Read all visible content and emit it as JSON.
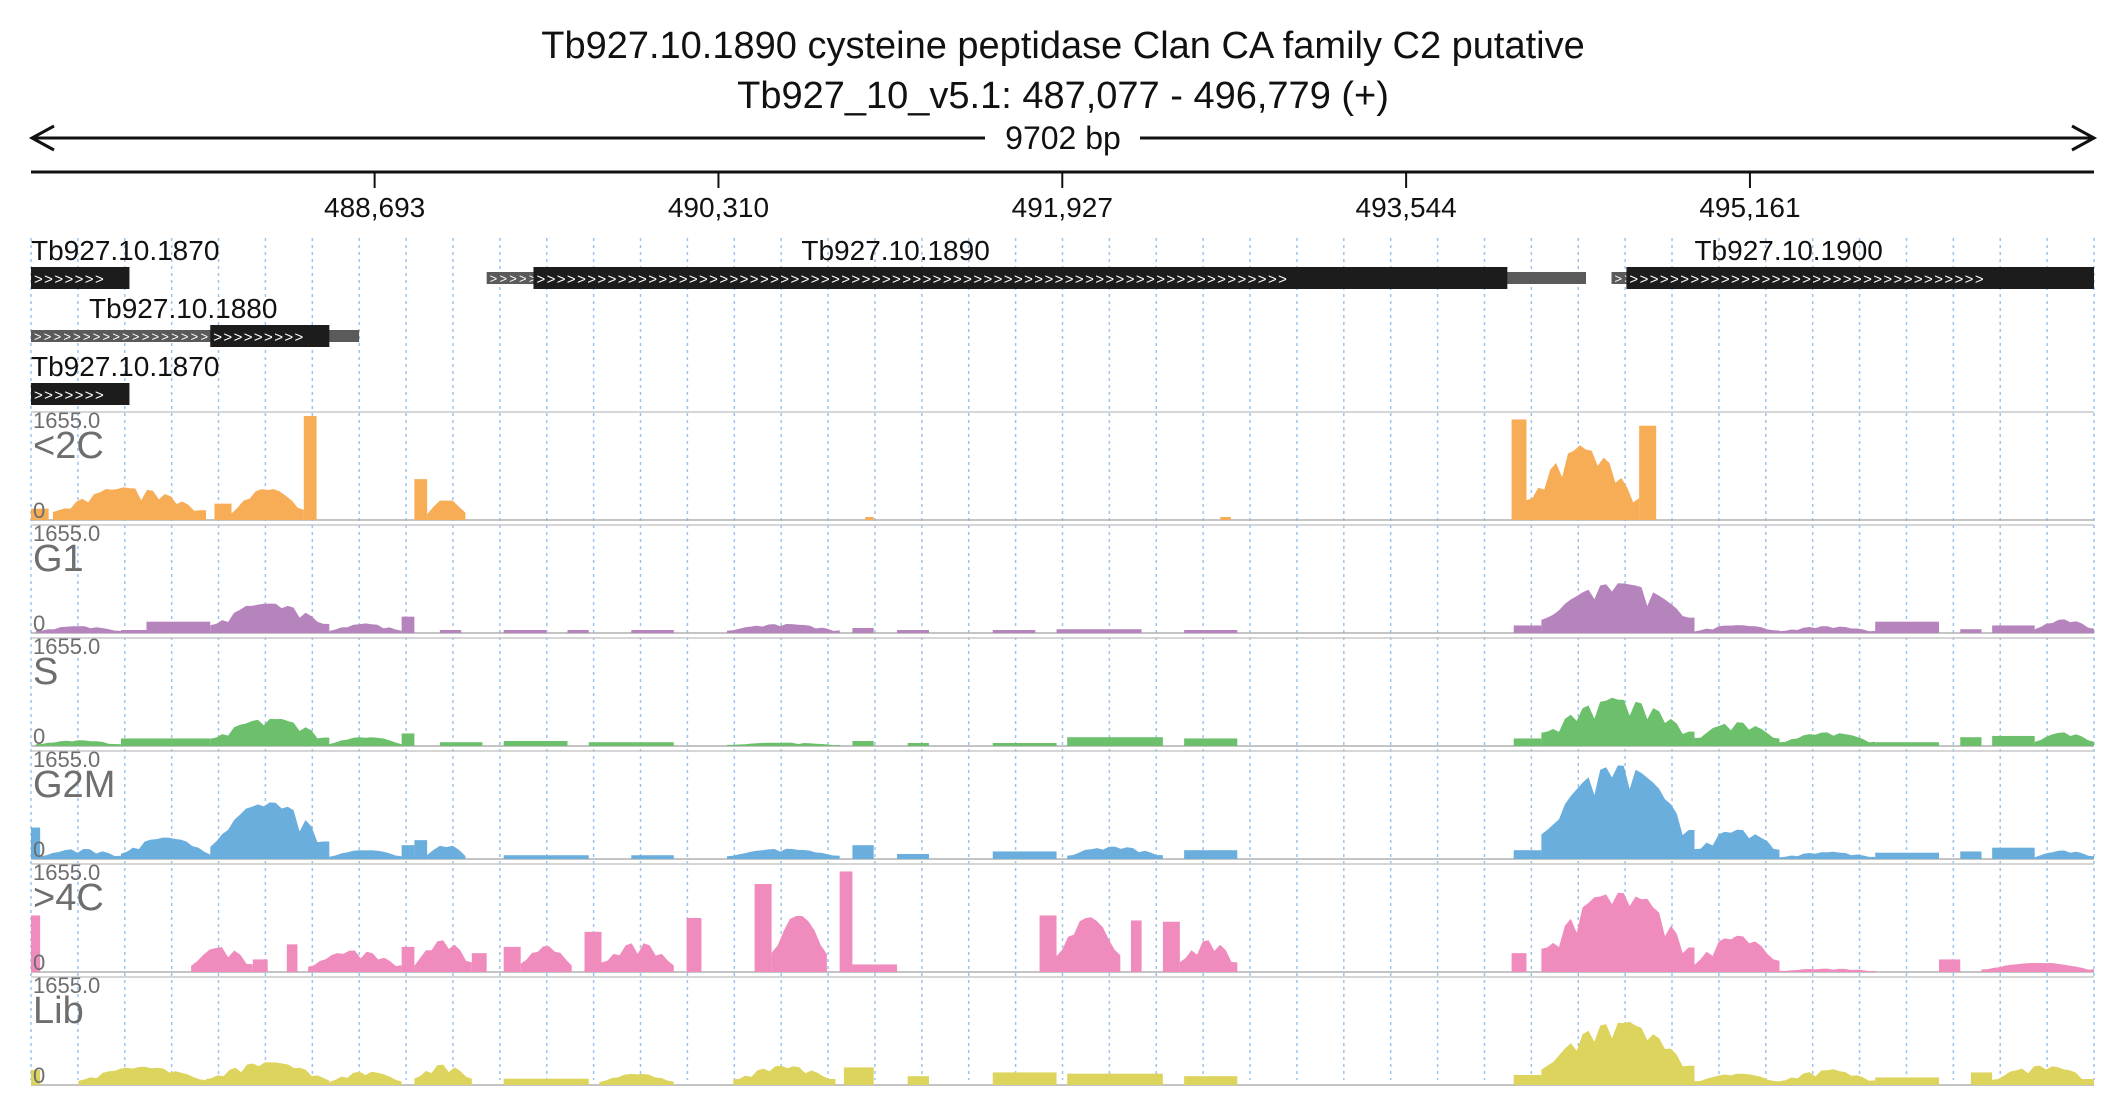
{
  "header": {
    "title": "Tb927.10.1890  cysteine peptidase  Clan CA  family C2  putative",
    "locus": "Tb927_10_v5.1: 487,077 - 496,779 (+)",
    "span_label": "9702 bp"
  },
  "chart_data": {
    "type": "area",
    "region": {
      "start": 487077,
      "end": 496779
    },
    "ruler_ticks": [
      {
        "pos": 488693,
        "label": "488,693"
      },
      {
        "pos": 490310,
        "label": "490,310"
      },
      {
        "pos": 491927,
        "label": "491,927"
      },
      {
        "pos": 493544,
        "label": "493,544"
      },
      {
        "pos": 495161,
        "label": "495,161"
      }
    ],
    "genes": [
      {
        "name": "Tb927.10.1870",
        "row": 0,
        "show_label": true,
        "label_pos": 487077,
        "utr": [],
        "cds": [
          487077,
          487540
        ],
        "strand": "+"
      },
      {
        "name": "Tb927.10.1890",
        "row": 0,
        "show_label": true,
        "label_pos": 490700,
        "utr": [
          489220,
          494390
        ],
        "cds": [
          489440,
          494020
        ],
        "strand": "+"
      },
      {
        "name": "Tb927.10.1900",
        "row": 0,
        "show_label": true,
        "label_pos": 494900,
        "utr": [
          494510,
          496779
        ],
        "cds": [
          494580,
          496779
        ],
        "strand": "+"
      },
      {
        "name": "Tb927.10.1880",
        "row": 1,
        "show_label": true,
        "label_pos": 487350,
        "utr": [
          487077,
          488620
        ],
        "cds": [
          487920,
          488480
        ],
        "strand": "+"
      },
      {
        "name": "Tb927.10.1870",
        "row": 2,
        "show_label": true,
        "label_pos": 487077,
        "utr": [],
        "cds": [
          487077,
          487540
        ],
        "strand": "+"
      }
    ],
    "tracks": [
      {
        "name": "<2C",
        "color": "#f7ac56",
        "max_label": "1655.0",
        "min_label": "0",
        "max": 1655,
        "regions": [
          {
            "s": 487077,
            "e": 487160,
            "v": 180
          },
          {
            "s": 487180,
            "e": 487900,
            "v": 560,
            "shape": "hump"
          },
          {
            "s": 487940,
            "e": 488020,
            "v": 260
          },
          {
            "s": 488020,
            "e": 488360,
            "v": 560,
            "shape": "hump"
          },
          {
            "s": 488360,
            "e": 488420,
            "v": 1655
          },
          {
            "s": 488880,
            "e": 488940,
            "v": 650
          },
          {
            "s": 488940,
            "e": 489120,
            "v": 380,
            "shape": "hump"
          },
          {
            "s": 491000,
            "e": 491040,
            "v": 30
          },
          {
            "s": 492670,
            "e": 492720,
            "v": 40
          },
          {
            "s": 494040,
            "e": 494110,
            "v": 1600
          },
          {
            "s": 494110,
            "e": 494640,
            "v": 1250,
            "shape": "hump"
          },
          {
            "s": 494640,
            "e": 494720,
            "v": 1500
          }
        ]
      },
      {
        "name": "G1",
        "color": "#b584bd",
        "max_label": "1655.0",
        "min_label": "0",
        "max": 1655,
        "regions": [
          {
            "s": 487100,
            "e": 487500,
            "v": 120,
            "shape": "hump"
          },
          {
            "s": 487500,
            "e": 487620,
            "v": 40
          },
          {
            "s": 487620,
            "e": 487920,
            "v": 180
          },
          {
            "s": 487920,
            "e": 488480,
            "v": 520,
            "shape": "hump"
          },
          {
            "s": 488480,
            "e": 488820,
            "v": 160,
            "shape": "hump"
          },
          {
            "s": 488820,
            "e": 488880,
            "v": 260
          },
          {
            "s": 489000,
            "e": 489100,
            "v": 40
          },
          {
            "s": 489300,
            "e": 489500,
            "v": 40
          },
          {
            "s": 489600,
            "e": 489700,
            "v": 40
          },
          {
            "s": 489900,
            "e": 490100,
            "v": 40
          },
          {
            "s": 490350,
            "e": 490880,
            "v": 160,
            "shape": "hump"
          },
          {
            "s": 490940,
            "e": 491040,
            "v": 80
          },
          {
            "s": 491150,
            "e": 491300,
            "v": 40
          },
          {
            "s": 491600,
            "e": 491800,
            "v": 40
          },
          {
            "s": 491900,
            "e": 492300,
            "v": 60
          },
          {
            "s": 492500,
            "e": 492750,
            "v": 40
          },
          {
            "s": 494050,
            "e": 494180,
            "v": 120
          },
          {
            "s": 494180,
            "e": 494900,
            "v": 880,
            "shape": "hump"
          },
          {
            "s": 494900,
            "e": 495300,
            "v": 140,
            "shape": "hump"
          },
          {
            "s": 495300,
            "e": 495750,
            "v": 120,
            "shape": "hump"
          },
          {
            "s": 495750,
            "e": 496050,
            "v": 180
          },
          {
            "s": 496150,
            "e": 496250,
            "v": 60
          },
          {
            "s": 496300,
            "e": 496500,
            "v": 120
          },
          {
            "s": 496500,
            "e": 496779,
            "v": 240,
            "shape": "hump"
          }
        ]
      },
      {
        "name": "S",
        "color": "#6cc06c",
        "max_label": "1655.0",
        "min_label": "0",
        "max": 1655,
        "regions": [
          {
            "s": 487100,
            "e": 487500,
            "v": 100,
            "shape": "hump"
          },
          {
            "s": 487500,
            "e": 487920,
            "v": 120
          },
          {
            "s": 487920,
            "e": 488480,
            "v": 480,
            "shape": "hump"
          },
          {
            "s": 488480,
            "e": 488820,
            "v": 160,
            "shape": "hump"
          },
          {
            "s": 488820,
            "e": 488880,
            "v": 200
          },
          {
            "s": 489000,
            "e": 489200,
            "v": 60
          },
          {
            "s": 489300,
            "e": 489600,
            "v": 80
          },
          {
            "s": 489700,
            "e": 490100,
            "v": 60
          },
          {
            "s": 490350,
            "e": 490880,
            "v": 60,
            "shape": "hump"
          },
          {
            "s": 490940,
            "e": 491040,
            "v": 80
          },
          {
            "s": 491200,
            "e": 491300,
            "v": 40
          },
          {
            "s": 491600,
            "e": 491900,
            "v": 40
          },
          {
            "s": 491950,
            "e": 492400,
            "v": 140
          },
          {
            "s": 492500,
            "e": 492750,
            "v": 120
          },
          {
            "s": 494050,
            "e": 494180,
            "v": 120
          },
          {
            "s": 494180,
            "e": 494900,
            "v": 820,
            "shape": "hump"
          },
          {
            "s": 494900,
            "e": 495300,
            "v": 420,
            "shape": "hump"
          },
          {
            "s": 495300,
            "e": 495750,
            "v": 240,
            "shape": "hump"
          },
          {
            "s": 495750,
            "e": 496050,
            "v": 60
          },
          {
            "s": 496150,
            "e": 496250,
            "v": 140
          },
          {
            "s": 496300,
            "e": 496500,
            "v": 160
          },
          {
            "s": 496500,
            "e": 496779,
            "v": 240,
            "shape": "hump"
          }
        ]
      },
      {
        "name": "G2M",
        "color": "#6aaede",
        "max_label": "1655.0",
        "min_label": "0",
        "max": 1655,
        "regions": [
          {
            "s": 487077,
            "e": 487120,
            "v": 500
          },
          {
            "s": 487120,
            "e": 487500,
            "v": 180,
            "shape": "hump"
          },
          {
            "s": 487500,
            "e": 487920,
            "v": 380,
            "shape": "hump"
          },
          {
            "s": 487920,
            "e": 488480,
            "v": 1000,
            "shape": "hump"
          },
          {
            "s": 488480,
            "e": 488820,
            "v": 160,
            "shape": "hump"
          },
          {
            "s": 488820,
            "e": 488880,
            "v": 220
          },
          {
            "s": 488880,
            "e": 488940,
            "v": 300
          },
          {
            "s": 488940,
            "e": 489120,
            "v": 260,
            "shape": "hump"
          },
          {
            "s": 489300,
            "e": 489700,
            "v": 60
          },
          {
            "s": 489900,
            "e": 490100,
            "v": 60
          },
          {
            "s": 490350,
            "e": 490880,
            "v": 180,
            "shape": "hump"
          },
          {
            "s": 490940,
            "e": 491040,
            "v": 220
          },
          {
            "s": 491150,
            "e": 491300,
            "v": 80
          },
          {
            "s": 491600,
            "e": 491900,
            "v": 120
          },
          {
            "s": 491950,
            "e": 492400,
            "v": 220,
            "shape": "hump"
          },
          {
            "s": 492500,
            "e": 492750,
            "v": 140
          },
          {
            "s": 494050,
            "e": 494180,
            "v": 140
          },
          {
            "s": 494180,
            "e": 494900,
            "v": 1655,
            "shape": "hump"
          },
          {
            "s": 494900,
            "e": 495300,
            "v": 520,
            "shape": "hump"
          },
          {
            "s": 495300,
            "e": 495750,
            "v": 120,
            "shape": "hump"
          },
          {
            "s": 495750,
            "e": 496050,
            "v": 100
          },
          {
            "s": 496150,
            "e": 496250,
            "v": 120
          },
          {
            "s": 496300,
            "e": 496500,
            "v": 180
          },
          {
            "s": 496500,
            "e": 496779,
            "v": 150,
            "shape": "hump"
          }
        ]
      },
      {
        "name": ">4C",
        "color": "#f08cbd",
        "max_label": "1655.0",
        "min_label": "0",
        "max": 1655,
        "regions": [
          {
            "s": 487077,
            "e": 487120,
            "v": 900
          },
          {
            "s": 487830,
            "e": 488120,
            "v": 440,
            "shape": "hump"
          },
          {
            "s": 488120,
            "e": 488190,
            "v": 200
          },
          {
            "s": 488280,
            "e": 488330,
            "v": 440
          },
          {
            "s": 488380,
            "e": 488820,
            "v": 380,
            "shape": "hump"
          },
          {
            "s": 488820,
            "e": 488880,
            "v": 400
          },
          {
            "s": 488880,
            "e": 489150,
            "v": 560,
            "shape": "hump"
          },
          {
            "s": 489150,
            "e": 489220,
            "v": 300
          },
          {
            "s": 489300,
            "e": 489380,
            "v": 400
          },
          {
            "s": 489380,
            "e": 489620,
            "v": 460,
            "shape": "hump"
          },
          {
            "s": 489680,
            "e": 489760,
            "v": 640
          },
          {
            "s": 489760,
            "e": 490100,
            "v": 520,
            "shape": "hump"
          },
          {
            "s": 490160,
            "e": 490230,
            "v": 860
          },
          {
            "s": 490480,
            "e": 490560,
            "v": 1400
          },
          {
            "s": 490560,
            "e": 490820,
            "v": 1000,
            "shape": "hump"
          },
          {
            "s": 490880,
            "e": 490940,
            "v": 1600
          },
          {
            "s": 490940,
            "e": 491150,
            "v": 120
          },
          {
            "s": 491820,
            "e": 491900,
            "v": 900
          },
          {
            "s": 491900,
            "e": 492200,
            "v": 960,
            "shape": "hump"
          },
          {
            "s": 492250,
            "e": 492300,
            "v": 820
          },
          {
            "s": 492400,
            "e": 492480,
            "v": 800
          },
          {
            "s": 492480,
            "e": 492750,
            "v": 560,
            "shape": "hump"
          },
          {
            "s": 494040,
            "e": 494110,
            "v": 300
          },
          {
            "s": 494180,
            "e": 494900,
            "v": 1400,
            "shape": "hump"
          },
          {
            "s": 494900,
            "e": 495300,
            "v": 640,
            "shape": "hump"
          },
          {
            "s": 495300,
            "e": 495750,
            "v": 60,
            "shape": "hump"
          },
          {
            "s": 496050,
            "e": 496150,
            "v": 200
          },
          {
            "s": 496250,
            "e": 496779,
            "v": 160,
            "shape": "hump"
          }
        ]
      },
      {
        "name": "Lib",
        "color": "#dcd45c",
        "max_label": "1655.0",
        "min_label": "0",
        "max": 1655,
        "regions": [
          {
            "s": 487077,
            "e": 487120,
            "v": 240
          },
          {
            "s": 487300,
            "e": 487900,
            "v": 320,
            "shape": "hump"
          },
          {
            "s": 487900,
            "e": 488480,
            "v": 400,
            "shape": "hump"
          },
          {
            "s": 488480,
            "e": 488820,
            "v": 240,
            "shape": "hump"
          },
          {
            "s": 488880,
            "e": 489150,
            "v": 360,
            "shape": "hump"
          },
          {
            "s": 489300,
            "e": 489700,
            "v": 100
          },
          {
            "s": 489750,
            "e": 490100,
            "v": 200,
            "shape": "hump"
          },
          {
            "s": 490380,
            "e": 490860,
            "v": 340,
            "shape": "hump"
          },
          {
            "s": 490900,
            "e": 491040,
            "v": 280
          },
          {
            "s": 491200,
            "e": 491300,
            "v": 140
          },
          {
            "s": 491600,
            "e": 491900,
            "v": 200
          },
          {
            "s": 491950,
            "e": 492400,
            "v": 180
          },
          {
            "s": 492500,
            "e": 492750,
            "v": 140
          },
          {
            "s": 494050,
            "e": 494180,
            "v": 160
          },
          {
            "s": 494180,
            "e": 494900,
            "v": 1100,
            "shape": "hump"
          },
          {
            "s": 494900,
            "e": 495300,
            "v": 200,
            "shape": "hump"
          },
          {
            "s": 495300,
            "e": 495750,
            "v": 260,
            "shape": "hump"
          },
          {
            "s": 495750,
            "e": 496050,
            "v": 120
          },
          {
            "s": 496200,
            "e": 496300,
            "v": 200
          },
          {
            "s": 496300,
            "e": 496779,
            "v": 340,
            "shape": "hump"
          }
        ]
      }
    ]
  }
}
